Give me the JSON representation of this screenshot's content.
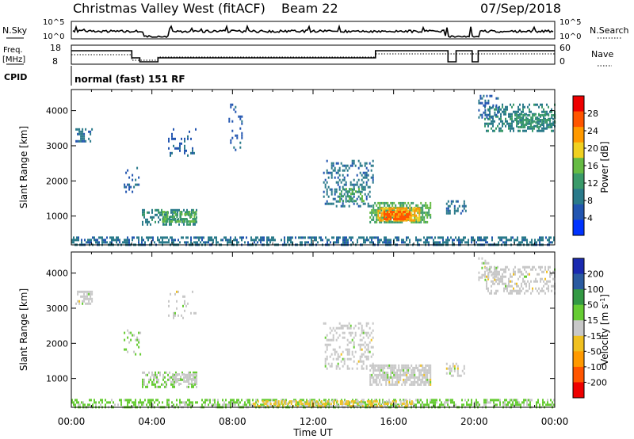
{
  "header": {
    "title": "Christmas Valley West (fitACF)",
    "beam": "Beam 22",
    "date": "07/Sep/2018"
  },
  "nsky_panel": {
    "label": "N.Sky",
    "right_label": "N.Search",
    "left_ticks": [
      "10^5",
      "10^0"
    ],
    "right_ticks": [
      "10^5",
      "10^0"
    ]
  },
  "freq_panel": {
    "label_line1": "Freq.",
    "label_line2": "[MHz]",
    "right_label": "Nave",
    "left_ticks": [
      "18",
      "8"
    ],
    "right_ticks": [
      "60",
      "0"
    ]
  },
  "cpid": {
    "label": "CPID",
    "text": "normal (fast) 151 RF"
  },
  "time_axis": {
    "label": "Time UT",
    "ticks": [
      "00:00",
      "04:00",
      "08:00",
      "12:00",
      "16:00",
      "20:00",
      "00:00"
    ]
  },
  "colors": {
    "power_scale": [
      "#0033ff",
      "#2255b0",
      "#2a7a8a",
      "#3a9a6a",
      "#66bb44",
      "#f0d020",
      "#ff9900",
      "#ff5500",
      "#ee0000"
    ],
    "velocity_scale": [
      "#ee0000",
      "#ff5500",
      "#ff9900",
      "#f0c020",
      "#c8c8c8",
      "#66cc33",
      "#339944",
      "#2a5aa0",
      "#1a2ab0"
    ]
  },
  "chart_data": [
    {
      "type": "heatmap",
      "name": "power",
      "ylabel": "Slant Range [km]",
      "yticks": [
        "1000",
        "2000",
        "3000",
        "4000"
      ],
      "ylim": [
        180,
        4600
      ],
      "xlim_hours": [
        0,
        24
      ],
      "colorbar": {
        "label": "Power [dB]",
        "ticks": [
          "4",
          "8",
          "12",
          "16",
          "20",
          "24",
          "28"
        ],
        "range": [
          0,
          32
        ]
      },
      "regions": [
        {
          "t": [
            0.0,
            24.0
          ],
          "r": [
            180,
            420
          ],
          "value": 8,
          "dense": 0.5
        },
        {
          "t": [
            0.2,
            1.0
          ],
          "r": [
            3150,
            3500
          ],
          "value": 8,
          "dense": 0.45
        },
        {
          "t": [
            3.5,
            6.2
          ],
          "r": [
            750,
            1200
          ],
          "value": 10,
          "dense": 0.5
        },
        {
          "t": [
            4.5,
            6.2
          ],
          "r": [
            850,
            1150
          ],
          "value": 14,
          "dense": 0.6
        },
        {
          "t": [
            2.6,
            3.4
          ],
          "r": [
            1700,
            2400
          ],
          "value": 6,
          "dense": 0.2
        },
        {
          "t": [
            4.8,
            6.2
          ],
          "r": [
            2700,
            3500
          ],
          "value": 6,
          "dense": 0.15
        },
        {
          "t": [
            7.8,
            8.5
          ],
          "r": [
            2900,
            4200
          ],
          "value": 6,
          "dense": 0.12
        },
        {
          "t": [
            12.5,
            15.0
          ],
          "r": [
            1300,
            2600
          ],
          "value": 8,
          "dense": 0.3
        },
        {
          "t": [
            13.3,
            14.5
          ],
          "r": [
            1400,
            1800
          ],
          "value": 14,
          "dense": 0.3
        },
        {
          "t": [
            14.8,
            17.8
          ],
          "r": [
            800,
            1400
          ],
          "value": 14,
          "dense": 0.65
        },
        {
          "t": [
            15.2,
            17.3
          ],
          "r": [
            850,
            1250
          ],
          "value": 22,
          "dense": 0.8
        },
        {
          "t": [
            15.5,
            16.8
          ],
          "r": [
            900,
            1150
          ],
          "value": 26,
          "dense": 0.75
        },
        {
          "t": [
            18.6,
            19.6
          ],
          "r": [
            1050,
            1450
          ],
          "value": 8,
          "dense": 0.45
        },
        {
          "t": [
            20.5,
            24.0
          ],
          "r": [
            3400,
            4200
          ],
          "value": 10,
          "dense": 0.4
        },
        {
          "t": [
            22.0,
            24.0
          ],
          "r": [
            3500,
            3900
          ],
          "value": 12,
          "dense": 0.6
        },
        {
          "t": [
            20.2,
            21.2
          ],
          "r": [
            3800,
            4450
          ],
          "value": 6,
          "dense": 0.3
        }
      ]
    },
    {
      "type": "heatmap",
      "name": "velocity",
      "ylabel": "Slant Range [km]",
      "yticks": [
        "1000",
        "2000",
        "3000",
        "4000"
      ],
      "ylim": [
        180,
        4600
      ],
      "xlim_hours": [
        0,
        24
      ],
      "colorbar": {
        "label": "Velocity [m s^-1]",
        "ticks": [
          "-200",
          "-100",
          "-50",
          "-15",
          "15",
          "50",
          "100",
          "200"
        ],
        "range": [
          -250,
          250
        ]
      },
      "regions": [
        {
          "t": [
            0.0,
            24.0
          ],
          "r": [
            180,
            420
          ],
          "value": 40,
          "dense": 0.5
        },
        {
          "t": [
            9.0,
            17.0
          ],
          "r": [
            180,
            380
          ],
          "value": -40,
          "dense": 0.55
        },
        {
          "t": [
            0.2,
            1.0
          ],
          "r": [
            3150,
            3500
          ],
          "value": 0,
          "dense": 0.45
        },
        {
          "t": [
            3.5,
            6.2
          ],
          "r": [
            750,
            1200
          ],
          "value": 30,
          "dense": 0.5
        },
        {
          "t": [
            5.0,
            6.2
          ],
          "r": [
            850,
            1150
          ],
          "value": 0,
          "dense": 0.5
        },
        {
          "t": [
            2.6,
            3.4
          ],
          "r": [
            1700,
            2400
          ],
          "value": 30,
          "dense": 0.2
        },
        {
          "t": [
            4.8,
            6.2
          ],
          "r": [
            2700,
            3500
          ],
          "value": 0,
          "dense": 0.12
        },
        {
          "t": [
            12.5,
            15.0
          ],
          "r": [
            1300,
            2600
          ],
          "value": 0,
          "dense": 0.3
        },
        {
          "t": [
            14.8,
            17.8
          ],
          "r": [
            800,
            1400
          ],
          "value": 0,
          "dense": 0.75
        },
        {
          "t": [
            18.6,
            19.6
          ],
          "r": [
            1050,
            1450
          ],
          "value": 0,
          "dense": 0.4
        },
        {
          "t": [
            20.5,
            24.0
          ],
          "r": [
            3400,
            4200
          ],
          "value": 0,
          "dense": 0.4
        },
        {
          "t": [
            20.2,
            21.2
          ],
          "r": [
            3800,
            4450
          ],
          "value": 0,
          "dense": 0.3
        }
      ]
    }
  ]
}
